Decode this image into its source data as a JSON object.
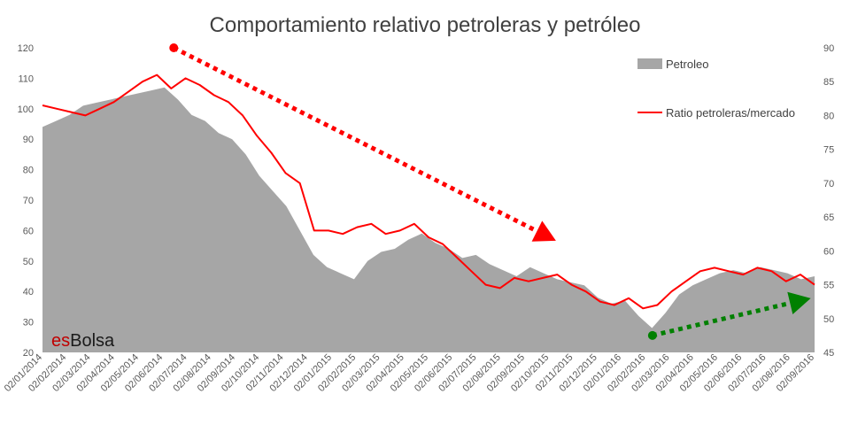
{
  "chart_data": {
    "type": "area",
    "title": "Comportamiento relativo petroleras y petróleo",
    "x_tick_labels": [
      "02/01/2014",
      "02/02/2014",
      "02/03/2014",
      "02/04/2014",
      "02/05/2014",
      "02/06/2014",
      "02/07/2014",
      "02/08/2014",
      "02/09/2014",
      "02/10/2014",
      "02/11/2014",
      "02/12/2014",
      "02/01/2015",
      "02/02/2015",
      "02/03/2015",
      "02/04/2015",
      "02/05/2015",
      "02/06/2015",
      "02/07/2015",
      "02/08/2015",
      "02/09/2015",
      "02/10/2015",
      "02/11/2015",
      "02/12/2015",
      "02/01/2016",
      "02/02/2016",
      "02/03/2016",
      "02/04/2016",
      "02/05/2016",
      "02/06/2016",
      "02/07/2016",
      "02/08/2016",
      "02/09/2016"
    ],
    "y_left": {
      "min": 20,
      "max": 120,
      "ticks": [
        "20",
        "30",
        "40",
        "50",
        "60",
        "70",
        "80",
        "90",
        "100",
        "110",
        "120"
      ]
    },
    "y_right": {
      "min": 45,
      "max": 90,
      "ticks": [
        "45",
        "50",
        "55",
        "60",
        "65",
        "70",
        "75",
        "80",
        "85",
        "90"
      ]
    },
    "grid": false,
    "legend_position": "top-right",
    "series": [
      {
        "name": "Petroleo",
        "type": "area",
        "axis": "left",
        "color": "#a6a6a6",
        "values": [
          94,
          96,
          98,
          101,
          102,
          103,
          104,
          105,
          106,
          107,
          103,
          98,
          96,
          92,
          90,
          85,
          78,
          73,
          68,
          60,
          52,
          48,
          46,
          44,
          50,
          53,
          54,
          57,
          59,
          56,
          54,
          51,
          52,
          49,
          47,
          45,
          48,
          46,
          44,
          43,
          42,
          38,
          36,
          37,
          32,
          28,
          33,
          39,
          42,
          44,
          46,
          47,
          46,
          48,
          47,
          46,
          44,
          45
        ]
      },
      {
        "name": "Ratio petroleras/mercado",
        "type": "line",
        "axis": "right",
        "color": "#ff0000",
        "values": [
          81.5,
          81,
          80.5,
          80,
          81,
          82,
          83.5,
          85,
          86,
          84,
          85.5,
          84.5,
          83,
          82,
          80,
          77,
          74.5,
          71.5,
          70,
          63,
          63,
          62.5,
          63.5,
          64,
          62.5,
          63,
          64,
          62,
          61,
          59,
          57,
          55,
          54.5,
          56,
          55.5,
          56,
          56.5,
          55,
          54,
          52.5,
          52,
          53,
          51.5,
          52,
          54,
          55.5,
          57,
          57.5,
          57,
          56.5,
          57.5,
          57,
          55.5,
          56.5,
          55
        ]
      }
    ],
    "annotations": [
      {
        "type": "dashed-arrow",
        "color": "#ff0000",
        "from_axis": "right",
        "from": [
          0.17,
          90
        ],
        "to": [
          0.665,
          61.5
        ]
      },
      {
        "type": "dashed-arrow",
        "color": "#008000",
        "from_axis": "right",
        "from": [
          0.79,
          47.5
        ],
        "to": [
          0.995,
          53
        ]
      }
    ]
  },
  "logo": {
    "part1": "es",
    "part2": "Bolsa"
  },
  "legend": {
    "petroleo": "Petroleo",
    "ratio": "Ratio petroleras/mercado"
  }
}
